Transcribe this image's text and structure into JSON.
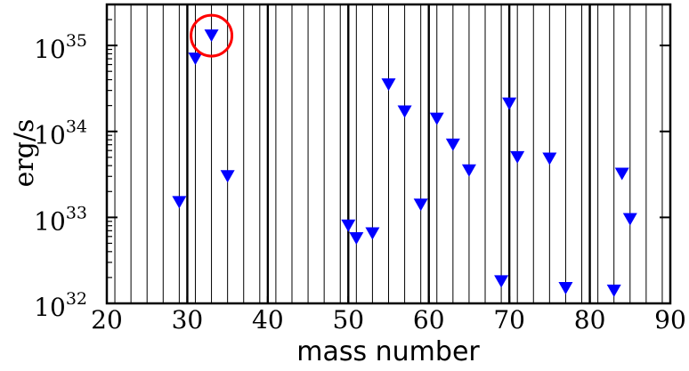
{
  "chart_data": {
    "type": "scatter",
    "xlabel": "mass number",
    "ylabel": "erg/s",
    "xlim": [
      20,
      90
    ],
    "ylim": [
      1e+32,
      3e+35
    ],
    "yscale": "log",
    "x_ticks": [
      20,
      30,
      40,
      50,
      60,
      70,
      80,
      90
    ],
    "x_tick_labels": [
      "20",
      "30",
      "40",
      "50",
      "60",
      "70",
      "80",
      "90"
    ],
    "y_ticks": [
      1e+32,
      1e+33,
      1e+34,
      1e+35
    ],
    "y_tick_labels": [
      {
        "base": "10",
        "exp": "32"
      },
      {
        "base": "10",
        "exp": "33"
      },
      {
        "base": "10",
        "exp": "34"
      },
      {
        "base": "10",
        "exp": "35"
      }
    ],
    "grid": "vertical lines at every odd mass number (thin) and every multiple of 10 (thick)",
    "marker": "downward triangle",
    "marker_color": "#0000ff",
    "highlight_color": "#ff0000",
    "highlight_x": 33,
    "series": [
      {
        "points": [
          {
            "x": 29,
            "y": 1.5e+33
          },
          {
            "x": 31,
            "y": 7e+34
          },
          {
            "x": 33,
            "y": 1.3e+35
          },
          {
            "x": 35,
            "y": 3e+33
          },
          {
            "x": 50,
            "y": 8e+32
          },
          {
            "x": 51,
            "y": 5.7e+32
          },
          {
            "x": 53,
            "y": 6.5e+32
          },
          {
            "x": 55,
            "y": 3.5e+34
          },
          {
            "x": 57,
            "y": 1.7e+34
          },
          {
            "x": 59,
            "y": 1.4e+33
          },
          {
            "x": 61,
            "y": 1.4e+34
          },
          {
            "x": 63,
            "y": 7e+33
          },
          {
            "x": 65,
            "y": 3.5e+33
          },
          {
            "x": 69,
            "y": 1.8e+32
          },
          {
            "x": 70,
            "y": 2.1e+34
          },
          {
            "x": 71,
            "y": 5e+33
          },
          {
            "x": 75,
            "y": 4.8e+33
          },
          {
            "x": 77,
            "y": 1.5e+32
          },
          {
            "x": 83,
            "y": 1.4e+32
          },
          {
            "x": 84,
            "y": 3.2e+33
          },
          {
            "x": 85,
            "y": 9.5e+32
          }
        ]
      }
    ]
  }
}
